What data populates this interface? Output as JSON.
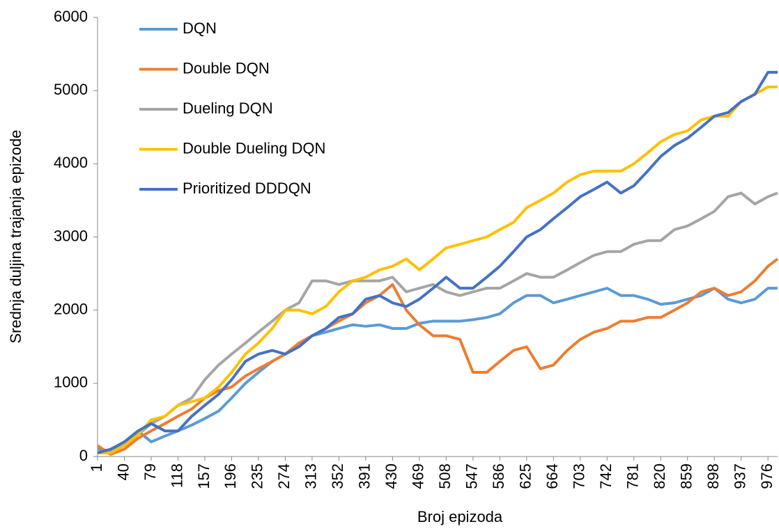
{
  "chart_data": {
    "type": "line",
    "xlabel": "Broj epizoda",
    "ylabel": "Srednja duljina trajanja epizode",
    "x": [
      1,
      20,
      40,
      60,
      79,
      99,
      118,
      138,
      157,
      177,
      196,
      216,
      235,
      255,
      274,
      294,
      313,
      333,
      352,
      372,
      391,
      411,
      430,
      450,
      469,
      489,
      508,
      528,
      547,
      567,
      586,
      606,
      625,
      645,
      664,
      684,
      703,
      723,
      742,
      762,
      781,
      801,
      820,
      840,
      859,
      879,
      898,
      918,
      937,
      957,
      976,
      990
    ],
    "xlim": [
      1,
      990
    ],
    "xticks": [
      1,
      40,
      79,
      118,
      157,
      196,
      235,
      274,
      313,
      352,
      391,
      430,
      469,
      508,
      547,
      586,
      625,
      664,
      703,
      742,
      781,
      820,
      859,
      898,
      937,
      976
    ],
    "ylim": [
      0,
      6000
    ],
    "yticks": [
      0,
      1000,
      2000,
      3000,
      4000,
      5000,
      6000
    ],
    "grid": false,
    "legend": "upper left",
    "series": [
      {
        "name": "DQN",
        "color": "#5b9bd5",
        "values": [
          100,
          80,
          200,
          350,
          200,
          280,
          350,
          430,
          520,
          620,
          800,
          1000,
          1150,
          1300,
          1400,
          1550,
          1650,
          1700,
          1750,
          1800,
          1780,
          1800,
          1750,
          1750,
          1820,
          1850,
          1850,
          1850,
          1870,
          1900,
          1950,
          2100,
          2200,
          2200,
          2100,
          2150,
          2200,
          2250,
          2300,
          2200,
          2200,
          2150,
          2080,
          2100,
          2150,
          2200,
          2300,
          2150,
          2100,
          2150,
          2300,
          2300
        ]
      },
      {
        "name": "Double DQN",
        "color": "#ed7d31",
        "values": [
          150,
          30,
          100,
          250,
          350,
          450,
          550,
          650,
          800,
          900,
          950,
          1100,
          1200,
          1300,
          1400,
          1550,
          1650,
          1750,
          1850,
          1950,
          2100,
          2200,
          2350,
          2000,
          1800,
          1650,
          1650,
          1600,
          1150,
          1150,
          1300,
          1450,
          1500,
          1200,
          1250,
          1450,
          1600,
          1700,
          1750,
          1850,
          1850,
          1900,
          1900,
          2000,
          2100,
          2250,
          2300,
          2200,
          2250,
          2400,
          2600,
          2700
        ]
      },
      {
        "name": "Dueling DQN",
        "color": "#a5a5a5",
        "values": [
          50,
          50,
          150,
          300,
          450,
          550,
          700,
          800,
          1050,
          1250,
          1400,
          1550,
          1700,
          1850,
          2000,
          2100,
          2400,
          2400,
          2350,
          2400,
          2400,
          2400,
          2450,
          2250,
          2300,
          2350,
          2250,
          2200,
          2250,
          2300,
          2300,
          2400,
          2500,
          2450,
          2450,
          2550,
          2650,
          2750,
          2800,
          2800,
          2900,
          2950,
          2950,
          3100,
          3150,
          3250,
          3350,
          3550,
          3600,
          3450,
          3550,
          3600
        ]
      },
      {
        "name": "Double Dueling DQN",
        "color": "#ffc000",
        "values": [
          50,
          50,
          150,
          300,
          500,
          550,
          700,
          750,
          800,
          950,
          1150,
          1400,
          1550,
          1750,
          2000,
          2000,
          1950,
          2050,
          2250,
          2400,
          2450,
          2550,
          2600,
          2700,
          2550,
          2700,
          2850,
          2900,
          2950,
          3000,
          3100,
          3200,
          3400,
          3500,
          3600,
          3750,
          3850,
          3900,
          3900,
          3900,
          4000,
          4150,
          4300,
          4400,
          4450,
          4600,
          4650,
          4650,
          4850,
          4950,
          5050,
          5050
        ]
      },
      {
        "name": "Prioritized DDDQN",
        "color": "#4472c4",
        "values": [
          50,
          100,
          200,
          350,
          450,
          350,
          350,
          550,
          700,
          850,
          1050,
          1300,
          1400,
          1450,
          1400,
          1500,
          1650,
          1750,
          1900,
          1950,
          2150,
          2200,
          2100,
          2050,
          2150,
          2300,
          2450,
          2300,
          2300,
          2450,
          2600,
          2800,
          3000,
          3100,
          3250,
          3400,
          3550,
          3650,
          3750,
          3600,
          3700,
          3900,
          4100,
          4250,
          4350,
          4500,
          4650,
          4700,
          4850,
          4950,
          5250,
          5250
        ]
      }
    ]
  }
}
